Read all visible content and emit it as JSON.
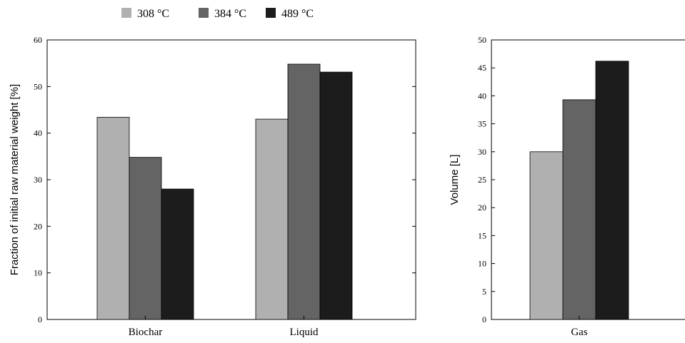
{
  "legend": [
    {
      "label": "308 °C",
      "color": "#b0b0b0"
    },
    {
      "label": "384 °C",
      "color": "#646464"
    },
    {
      "label": "489 °C",
      "color": "#1c1c1c"
    }
  ],
  "chart_data": [
    {
      "type": "bar",
      "categories": [
        "Biochar",
        "Liquid"
      ],
      "series": [
        {
          "name": "308 °C",
          "values": [
            43.4,
            43.0
          ]
        },
        {
          "name": "384 °C",
          "values": [
            34.8,
            54.8
          ]
        },
        {
          "name": "489 °C",
          "values": [
            28.0,
            53.1
          ]
        }
      ],
      "ylabel": "Fraction of initial raw material weight [%]",
      "ylim": [
        0,
        60
      ],
      "yticks": [
        0,
        10,
        20,
        30,
        40,
        50,
        60
      ],
      "grid": false,
      "legend_position": "top"
    },
    {
      "type": "bar",
      "categories": [
        "Gas"
      ],
      "series": [
        {
          "name": "308 °C",
          "values": [
            30.0
          ]
        },
        {
          "name": "384 °C",
          "values": [
            39.3
          ]
        },
        {
          "name": "489 °C",
          "values": [
            46.2
          ]
        }
      ],
      "ylabel": "Volume [L]",
      "ylim": [
        0,
        50
      ],
      "yticks": [
        0,
        5,
        10,
        15,
        20,
        25,
        30,
        35,
        40,
        45,
        50
      ],
      "grid": false
    }
  ]
}
